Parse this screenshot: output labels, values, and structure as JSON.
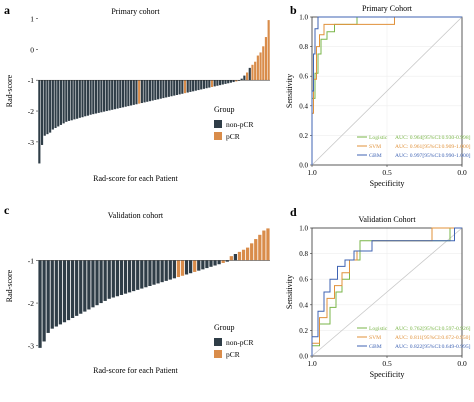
{
  "colors": {
    "nonpcr": "#2f3d47",
    "pcr": "#d98c4a",
    "logistic": "#7ab648",
    "svm": "#e0913a",
    "gbm": "#3f63b3",
    "diag": "#c8c8c8",
    "grid": "#eeeeee"
  },
  "chart_data": [
    {
      "id": "a",
      "panel_label": "a",
      "type": "bar",
      "title": "Primary cohort",
      "xlabel": "Rad-score for each Patient",
      "ylabel": "Rad-score",
      "baseline": -1,
      "ylim": [
        -3.75,
        1.05
      ],
      "yticks": [
        -3,
        -2,
        -1,
        0,
        1
      ],
      "legend": {
        "title": "Group",
        "entries": [
          "non-pCR",
          "pCR"
        ],
        "position": "bottom-right"
      },
      "values": [
        -3.7,
        -3.1,
        -2.8,
        -2.75,
        -2.7,
        -2.6,
        -2.55,
        -2.5,
        -2.45,
        -2.4,
        -2.35,
        -2.32,
        -2.3,
        -2.27,
        -2.25,
        -2.22,
        -2.2,
        -2.17,
        -2.15,
        -2.12,
        -2.1,
        -2.08,
        -2.06,
        -2.04,
        -2.02,
        -2.0,
        -1.98,
        -1.96,
        -1.94,
        -1.92,
        -1.9,
        -1.88,
        -1.86,
        -1.84,
        -1.82,
        -1.8,
        -1.78,
        -1.76,
        -1.74,
        -1.72,
        -1.7,
        -1.68,
        -1.66,
        -1.64,
        -1.62,
        -1.6,
        -1.58,
        -1.56,
        -1.54,
        -1.52,
        -1.5,
        -1.48,
        -1.46,
        -1.44,
        -1.42,
        -1.4,
        -1.38,
        -1.36,
        -1.34,
        -1.32,
        -1.3,
        -1.28,
        -1.26,
        -1.24,
        -1.22,
        -1.2,
        -1.18,
        -1.16,
        -1.14,
        -1.12,
        -1.1,
        -1.08,
        -1.06,
        -1.04,
        -1.02,
        -0.95,
        -0.85,
        -0.75,
        -0.6,
        -0.5,
        -0.4,
        -0.2,
        -0.1,
        0.1,
        0.4,
        0.95
      ],
      "pcr_indices": [
        37,
        54,
        64,
        73,
        77,
        79,
        80,
        81,
        82,
        83,
        84,
        85
      ]
    },
    {
      "id": "b",
      "panel_label": "b",
      "type": "line",
      "title": "Primary Cohort",
      "xlabel": "Specificity",
      "ylabel": "Sensitivity",
      "xlim": [
        1.0,
        0.0
      ],
      "ylim": [
        0.0,
        1.0
      ],
      "xticks": [
        "1.0",
        "0.5",
        "0.0"
      ],
      "yticks": [
        "0.0",
        "0.2",
        "0.4",
        "0.6",
        "0.8",
        "1.0"
      ],
      "legend_position": "bottom-right",
      "series": [
        {
          "name": "Logistic",
          "label": "AUC: 0.964[95%CI:0.930-0.998]",
          "x": [
            1.0,
            1.0,
            0.98,
            0.98,
            0.96,
            0.96,
            0.94,
            0.94,
            0.9,
            0.9,
            0.85,
            0.85,
            0.7,
            0.7,
            0.0
          ],
          "y": [
            0.0,
            0.45,
            0.45,
            0.62,
            0.62,
            0.75,
            0.75,
            0.85,
            0.85,
            0.9,
            0.9,
            0.95,
            0.95,
            1.0,
            1.0
          ]
        },
        {
          "name": "SVM",
          "label": "AUC: 0.961[95%CI:0.909-1.000]",
          "x": [
            1.0,
            1.0,
            0.99,
            0.99,
            0.97,
            0.97,
            0.95,
            0.95,
            0.92,
            0.92,
            0.45,
            0.45,
            0.0
          ],
          "y": [
            0.0,
            0.35,
            0.35,
            0.58,
            0.58,
            0.8,
            0.8,
            0.88,
            0.88,
            0.95,
            0.95,
            1.0,
            1.0
          ]
        },
        {
          "name": "GBM",
          "label": "AUC: 0.997[95%CI:0.990-1.000]",
          "x": [
            1.0,
            1.0,
            0.99,
            0.99,
            0.98,
            0.98,
            0.96,
            0.96,
            0.0
          ],
          "y": [
            0.0,
            0.5,
            0.5,
            0.75,
            0.75,
            0.92,
            0.92,
            1.0,
            1.0
          ]
        }
      ]
    },
    {
      "id": "c",
      "panel_label": "c",
      "type": "bar",
      "title": "Validation cohort",
      "xlabel": "Rad-score for each Patient",
      "ylabel": "Rad-score",
      "baseline": -1,
      "ylim": [
        -3.1,
        -0.1
      ],
      "yticks": [
        -3,
        -2,
        -1
      ],
      "legend": {
        "title": "Group",
        "entries": [
          "non-pCR",
          "pCR"
        ],
        "position": "bottom-right"
      },
      "values": [
        -3.05,
        -2.9,
        -2.7,
        -2.6,
        -2.55,
        -2.5,
        -2.45,
        -2.4,
        -2.35,
        -2.3,
        -2.25,
        -2.2,
        -2.15,
        -2.1,
        -2.05,
        -2.0,
        -1.95,
        -1.9,
        -1.87,
        -1.84,
        -1.81,
        -1.78,
        -1.75,
        -1.72,
        -1.69,
        -1.66,
        -1.63,
        -1.6,
        -1.57,
        -1.54,
        -1.51,
        -1.48,
        -1.45,
        -1.42,
        -1.39,
        -1.36,
        -1.33,
        -1.3,
        -1.27,
        -1.24,
        -1.21,
        -1.18,
        -1.15,
        -1.12,
        -1.09,
        -1.06,
        -1.03,
        -0.9,
        -0.85,
        -0.8,
        -0.75,
        -0.7,
        -0.6,
        -0.5,
        -0.4,
        -0.3,
        -0.25
      ],
      "pcr_indices": [
        34,
        35,
        38,
        45,
        47,
        49,
        50,
        51,
        52,
        53,
        54,
        55,
        56
      ]
    },
    {
      "id": "d",
      "panel_label": "d",
      "type": "line",
      "title": "Validation Cohort",
      "xlabel": "Specificity",
      "ylabel": "Sensitivity",
      "xlim": [
        1.0,
        0.0
      ],
      "ylim": [
        0.0,
        1.0
      ],
      "xticks": [
        "1.0",
        "0.5",
        "0.0"
      ],
      "yticks": [
        "0.0",
        "0.2",
        "0.4",
        "0.6",
        "0.8",
        "1.0"
      ],
      "legend_position": "bottom-right",
      "series": [
        {
          "name": "Logistic",
          "label": "AUC: 0.762[95%CI:0.597-0.926]",
          "x": [
            1.0,
            1.0,
            0.95,
            0.95,
            0.88,
            0.88,
            0.84,
            0.84,
            0.8,
            0.8,
            0.75,
            0.75,
            0.68,
            0.68,
            0.08,
            0.08,
            0.0
          ],
          "y": [
            0.0,
            0.08,
            0.08,
            0.25,
            0.25,
            0.38,
            0.38,
            0.5,
            0.5,
            0.6,
            0.6,
            0.75,
            0.75,
            0.9,
            0.9,
            1.0,
            1.0
          ]
        },
        {
          "name": "SVM",
          "label": "AUC: 0.811[95%CI:0.672-0.950]",
          "x": [
            1.0,
            1.0,
            0.95,
            0.95,
            0.9,
            0.9,
            0.85,
            0.85,
            0.8,
            0.8,
            0.75,
            0.75,
            0.7,
            0.7,
            0.6,
            0.6,
            0.2,
            0.2,
            0.05,
            0.05,
            0.0
          ],
          "y": [
            0.0,
            0.1,
            0.1,
            0.3,
            0.3,
            0.45,
            0.45,
            0.55,
            0.55,
            0.65,
            0.65,
            0.75,
            0.75,
            0.82,
            0.82,
            0.9,
            0.9,
            1.0,
            1.0,
            1.0,
            1.0
          ]
        },
        {
          "name": "GBM",
          "label": "AUC: 0.822[95%CI:0.649-0.995]",
          "x": [
            1.0,
            1.0,
            0.96,
            0.96,
            0.92,
            0.92,
            0.88,
            0.88,
            0.83,
            0.83,
            0.78,
            0.78,
            0.72,
            0.72,
            0.6,
            0.6,
            0.05,
            0.05,
            0.0
          ],
          "y": [
            0.0,
            0.15,
            0.15,
            0.35,
            0.35,
            0.5,
            0.5,
            0.6,
            0.6,
            0.7,
            0.7,
            0.75,
            0.75,
            0.82,
            0.82,
            0.9,
            0.9,
            1.0,
            1.0
          ]
        }
      ]
    }
  ]
}
